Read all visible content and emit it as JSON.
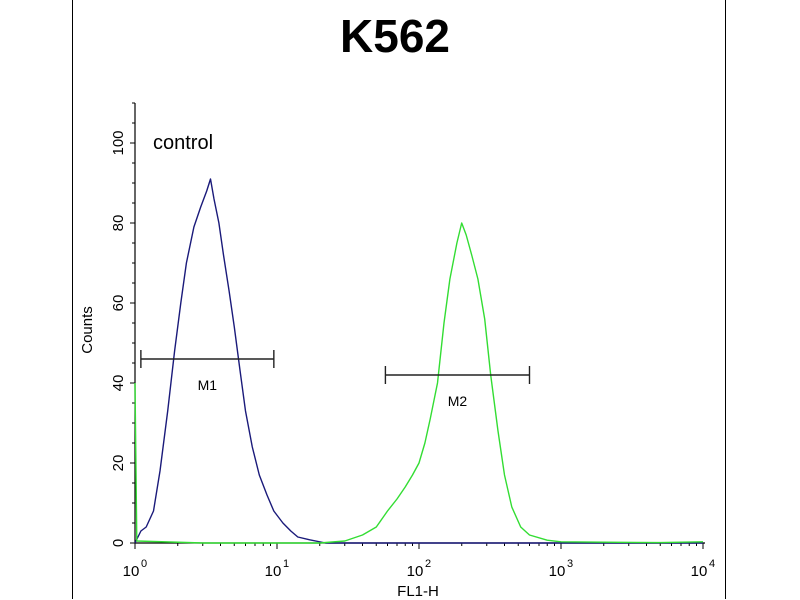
{
  "chart_data": {
    "type": "line",
    "title": "K562",
    "xlabel": "FL1-H",
    "ylabel": "Counts",
    "x_scale": "log",
    "xlim": [
      1,
      10000
    ],
    "ylim": [
      0,
      110
    ],
    "x_ticks": [
      {
        "base": "10",
        "exp": "0",
        "value": 1
      },
      {
        "base": "10",
        "exp": "1",
        "value": 10
      },
      {
        "base": "10",
        "exp": "2",
        "value": 100
      },
      {
        "base": "10",
        "exp": "3",
        "value": 1000
      },
      {
        "base": "10",
        "exp": "4",
        "value": 10000
      }
    ],
    "y_ticks": [
      "0",
      "20",
      "40",
      "60",
      "80",
      "100"
    ],
    "annotation": "control",
    "series": [
      {
        "color": "#1a1a7a",
        "points": [
          [
            1.0,
            0
          ],
          [
            1.1,
            3
          ],
          [
            1.2,
            4
          ],
          [
            1.35,
            8
          ],
          [
            1.5,
            18
          ],
          [
            1.7,
            33
          ],
          [
            1.9,
            48
          ],
          [
            2.1,
            60
          ],
          [
            2.3,
            70
          ],
          [
            2.6,
            79
          ],
          [
            2.9,
            84
          ],
          [
            3.2,
            88
          ],
          [
            3.4,
            91
          ],
          [
            3.6,
            86
          ],
          [
            3.9,
            80
          ],
          [
            4.2,
            72
          ],
          [
            4.6,
            63
          ],
          [
            5.0,
            54
          ],
          [
            5.5,
            43
          ],
          [
            6.0,
            33
          ],
          [
            6.7,
            24
          ],
          [
            7.5,
            17
          ],
          [
            8.5,
            12
          ],
          [
            9.5,
            8
          ],
          [
            11,
            5
          ],
          [
            12.5,
            3
          ],
          [
            14,
            1.5
          ],
          [
            17,
            0.8
          ],
          [
            22,
            0
          ],
          [
            60,
            0
          ],
          [
            200,
            0
          ],
          [
            1000,
            0
          ],
          [
            10000,
            0
          ]
        ]
      },
      {
        "color": "#33dd33",
        "points": [
          [
            1.0,
            40
          ],
          [
            1.03,
            0.5
          ],
          [
            3,
            0
          ],
          [
            20,
            0
          ],
          [
            30,
            0.5
          ],
          [
            40,
            2
          ],
          [
            50,
            4
          ],
          [
            60,
            8
          ],
          [
            70,
            11
          ],
          [
            80,
            14
          ],
          [
            90,
            17
          ],
          [
            100,
            20
          ],
          [
            110,
            25
          ],
          [
            120,
            31
          ],
          [
            135,
            40
          ],
          [
            150,
            55
          ],
          [
            165,
            66
          ],
          [
            185,
            75
          ],
          [
            200,
            80
          ],
          [
            215,
            77
          ],
          [
            235,
            72
          ],
          [
            260,
            66
          ],
          [
            290,
            56
          ],
          [
            320,
            42
          ],
          [
            360,
            28
          ],
          [
            400,
            17
          ],
          [
            450,
            9
          ],
          [
            520,
            4
          ],
          [
            600,
            2
          ],
          [
            800,
            0.7
          ],
          [
            1000,
            0.3
          ],
          [
            2000,
            0.2
          ],
          [
            5000,
            0.1
          ],
          [
            10000,
            0.3
          ]
        ]
      }
    ],
    "markers": [
      {
        "label": "M1",
        "x_start": 1.1,
        "x_end": 9.5,
        "y": 46
      },
      {
        "label": "M2",
        "x_start": 58,
        "x_end": 600,
        "y": 42
      }
    ]
  }
}
